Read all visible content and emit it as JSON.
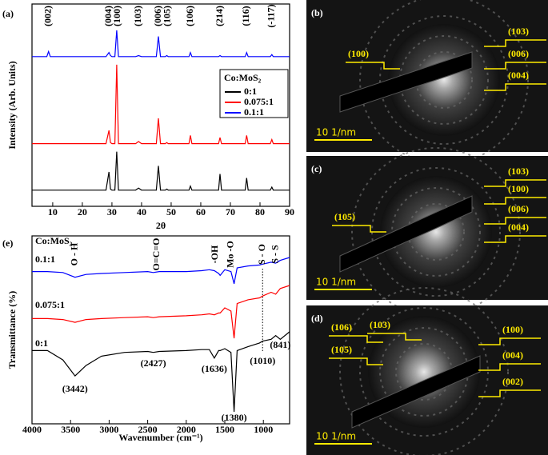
{
  "chart_data": [
    {
      "type": "line",
      "panel": "(a)",
      "ylabel": "Intensity (Arb. Units)",
      "xlabel": "2θ",
      "xlim": [
        3,
        90
      ],
      "xticks": [
        10,
        20,
        30,
        40,
        50,
        60,
        70,
        80,
        90
      ],
      "ylim": [
        0,
        100
      ],
      "x": [
        3,
        8,
        8.6,
        9.2,
        28,
        29,
        29.5,
        30,
        31,
        31.6,
        32.2,
        38,
        39,
        40,
        45,
        45.7,
        46.4,
        48,
        48.5,
        49,
        56,
        56.5,
        57,
        66,
        66.5,
        67,
        75,
        75.5,
        76,
        83.5,
        84,
        84.5,
        90
      ],
      "legend": "box",
      "legend_title": "Co:MoS₂",
      "series": [
        {
          "name": "0:1",
          "color": "#000000",
          "values": [
            8,
            8,
            8,
            8,
            8,
            17,
            8.5,
            8,
            8,
            27,
            8,
            8,
            9,
            8,
            8,
            20,
            8,
            8,
            8.5,
            8,
            8,
            10,
            8,
            8,
            16,
            8,
            8,
            14,
            8,
            8,
            9.5,
            8,
            8
          ]
        },
        {
          "name": "0.075:1",
          "color": "#ff0000",
          "values": [
            31,
            31,
            31,
            31,
            31,
            37.5,
            31.5,
            31,
            31,
            70,
            31,
            31,
            32,
            31,
            31,
            43.5,
            31,
            31,
            31.5,
            31,
            31,
            35,
            31,
            31,
            34,
            31,
            31,
            35,
            31,
            31,
            33,
            31,
            31
          ]
        },
        {
          "name": "0.1:1",
          "color": "#0000ff",
          "values": [
            74,
            74,
            76.5,
            74,
            74,
            76,
            74.5,
            74,
            74,
            87,
            74,
            74,
            74.5,
            74,
            74,
            84,
            74,
            74,
            74.5,
            74,
            74,
            76,
            74,
            74,
            74.5,
            74,
            74,
            76,
            74,
            74,
            75,
            74,
            74
          ]
        }
      ],
      "annotations": [
        {
          "text": "(002)",
          "x": 8.6
        },
        {
          "text": "(004)",
          "x": 29
        },
        {
          "text": "(100)",
          "x": 32
        },
        {
          "text": "(103)",
          "x": 39
        },
        {
          "text": "(006)",
          "x": 45.7
        },
        {
          "text": "(105)",
          "x": 48.8
        },
        {
          "text": "(106)",
          "x": 56.5
        },
        {
          "text": "(214)",
          "x": 66.5
        },
        {
          "text": "(116)",
          "x": 75.5
        },
        {
          "text": "(-117)",
          "x": 84
        }
      ]
    },
    {
      "type": "line",
      "panel": "(e)",
      "ylabel": "Transmittance (%)",
      "xlabel": "Wavenumber (cm⁻¹)",
      "xlim": [
        4000,
        660
      ],
      "xticks": [
        4000,
        3500,
        3000,
        2500,
        2000,
        1500,
        1000
      ],
      "ylim": [
        0,
        100
      ],
      "x": [
        4000,
        3800,
        3600,
        3442,
        3300,
        3100,
        2800,
        2500,
        2427,
        2350,
        2000,
        1800,
        1700,
        1636,
        1580,
        1560,
        1500,
        1420,
        1380,
        1340,
        1200,
        1050,
        1010,
        900,
        841,
        780,
        660
      ],
      "legend": "inline",
      "legend_title": "Co:MoS₂",
      "series": [
        {
          "name": "0:1",
          "color": "#000000",
          "values": [
            39,
            39,
            34,
            25.5,
            31,
            36,
            38,
            38.5,
            38,
            38.5,
            39,
            39.5,
            39.5,
            35,
            39,
            39,
            40,
            38,
            6.4,
            39,
            41,
            43,
            44,
            45,
            47,
            45,
            49
          ]
        },
        {
          "name": "0.075:1",
          "color": "#ff0000",
          "values": [
            56,
            56,
            55.5,
            54,
            55.5,
            56,
            56.5,
            57,
            56.5,
            57,
            57.5,
            58,
            58.5,
            58,
            59,
            59,
            61.7,
            60,
            45.5,
            64,
            66,
            67,
            68,
            70,
            69,
            72,
            73.6
          ]
        },
        {
          "name": "0.1:1",
          "color": "#0000ff",
          "values": [
            81,
            81,
            80.5,
            78,
            79.5,
            80,
            80.5,
            81,
            80.5,
            81,
            81,
            81.5,
            82,
            81.5,
            80,
            79,
            82,
            81,
            74.5,
            83,
            84,
            84.5,
            85,
            86,
            85.5,
            87,
            88.5
          ]
        }
      ],
      "annotations": [
        {
          "text": "O - H",
          "x": 3442
        },
        {
          "text": "O=C=O",
          "x": 2380
        },
        {
          "text": "-OH",
          "x": 1620
        },
        {
          "text": "Mo -O",
          "x": 1420
        },
        {
          "text": "S - O",
          "x": 1010,
          "guide": true
        },
        {
          "text": "S - S",
          "x": 841
        }
      ],
      "peak_labels": [
        {
          "text": "(3442)",
          "x": 3442
        },
        {
          "text": "(2427)",
          "x": 2427
        },
        {
          "text": "(1636)",
          "x": 1636
        },
        {
          "text": "(1380)",
          "x": 1380
        },
        {
          "text": "(1010)",
          "x": 1010
        },
        {
          "text": "(841)",
          "x": 780
        }
      ]
    }
  ],
  "images": [
    {
      "label": "(b)",
      "scale_bar": "10 1/nm",
      "planes": [
        "(100)",
        "(103)",
        "(006)",
        "(004)"
      ]
    },
    {
      "label": "(c)",
      "scale_bar": "10 1/nm",
      "planes": [
        "(105)",
        "(103)",
        "(100)",
        "(006)",
        "(004)"
      ]
    },
    {
      "label": "(d)",
      "scale_bar": "10 1/nm",
      "planes": [
        "(106)",
        "(103)",
        "(105)",
        "(100)",
        "(004)",
        "(002)"
      ]
    }
  ]
}
